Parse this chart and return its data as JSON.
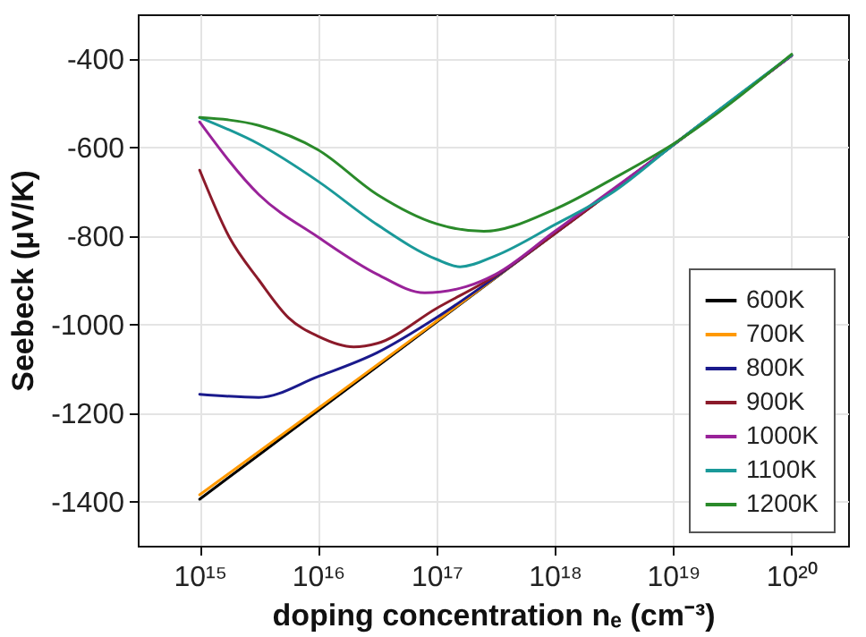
{
  "chart_data": {
    "type": "line",
    "xlabel": "doping concentration nₑ (cm⁻³)",
    "ylabel": "Seebeck (μV/K)",
    "log": "x",
    "xlim": [
      300000000000000.0,
      3e+20
    ],
    "ylim": [
      -1500,
      -300
    ],
    "xticks": [
      {
        "value": 1000000000000000.0,
        "label": "10¹⁵"
      },
      {
        "value": 1e+16,
        "label": "10¹⁶"
      },
      {
        "value": 1e+17,
        "label": "10¹⁷"
      },
      {
        "value": 1e+18,
        "label": "10¹⁸"
      },
      {
        "value": 1e+19,
        "label": "10¹⁹"
      },
      {
        "value": 1e+20,
        "label": "10²⁰"
      }
    ],
    "yticks": [
      -1400,
      -1200,
      -1000,
      -800,
      -600,
      -400
    ],
    "grid": true,
    "legend": "bottom right",
    "marker": "none",
    "line_style": "solid",
    "series": [
      {
        "name": "600K",
        "color": "#000000",
        "x": [
          1000000000000000.0,
          1e+16,
          1e+17,
          1e+18,
          1e+19,
          1e+20
        ],
        "values": [
          -1395,
          -1195,
          -995,
          -795,
          -595,
          -393
        ]
      },
      {
        "name": "700K",
        "color": "#ff9900",
        "x": [
          1000000000000000.0,
          1e+16,
          1e+17,
          1e+18
        ],
        "values": [
          -1385,
          -1190,
          -993,
          -795
        ]
      },
      {
        "name": "800K",
        "color": "#1a1a8c",
        "x": [
          1000000000000000.0,
          3162000000000000.0,
          1e+16,
          3.162e+16,
          1e+17,
          3.162e+17,
          1e+18,
          1e+19,
          1e+20
        ],
        "values": [
          -1158,
          -1165,
          -1118,
          -1064,
          -985,
          -893,
          -795,
          -595,
          -393
        ]
      },
      {
        "name": "900K",
        "color": "#8b1a2a",
        "x": [
          1000000000000000.0,
          1778000000000000.0,
          3162000000000000.0,
          5623000000000000.0,
          1e+16,
          2e+16,
          3.162e+16,
          1e+17,
          3.162e+17,
          1e+18,
          1e+19,
          1e+20
        ],
        "values": [
          -652,
          -803,
          -900,
          -985,
          -1027,
          -1051,
          -1043,
          -964,
          -890,
          -795,
          -595,
          -393
        ]
      },
      {
        "name": "1000K",
        "color": "#992299",
        "x": [
          1000000000000000.0,
          3162000000000000.0,
          1e+16,
          3.162e+16,
          7.943e+16,
          1.778e+17,
          3.162e+17,
          1e+18,
          1e+19,
          1e+20
        ],
        "values": [
          -543,
          -707,
          -803,
          -887,
          -929,
          -915,
          -887,
          -790,
          -595,
          -393
        ]
      },
      {
        "name": "1100K",
        "color": "#1a9999",
        "x": [
          1000000000000000.0,
          3162000000000000.0,
          1e+16,
          3.162e+16,
          1e+17,
          1.585e+17,
          3.162e+17,
          1e+18,
          3.162e+18,
          1e+19,
          1e+20
        ],
        "values": [
          -533,
          -593,
          -677,
          -775,
          -853,
          -870,
          -845,
          -775,
          -700,
          -595,
          -392
        ]
      },
      {
        "name": "1200K",
        "color": "#2a8a2a",
        "x": [
          1000000000000000.0,
          3162000000000000.0,
          1e+16,
          3.162e+16,
          1e+17,
          2.512e+17,
          1e+18,
          3.162e+18,
          1e+19,
          1e+20
        ],
        "values": [
          -533,
          -551,
          -606,
          -707,
          -773,
          -790,
          -740,
          -670,
          -593,
          -390
        ]
      }
    ]
  }
}
